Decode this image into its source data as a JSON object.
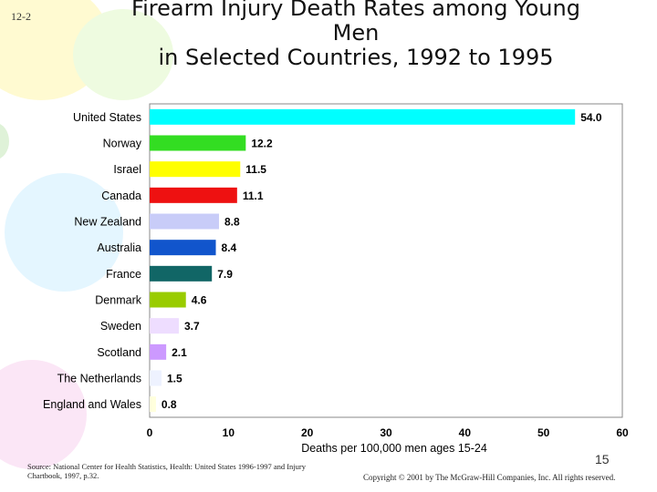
{
  "slide_number": "12-2",
  "title_lines": [
    "Firearm Injury Death Rates among Young",
    "Men",
    "in Selected Countries, 1992 to 1995"
  ],
  "source_text": "Source: National Center for Health Statistics, Health: United States 1996-1997 and Injury Chartbook, 1997, p.32.",
  "page_number": "15",
  "copyright": "Copyright © 2001 by The McGraw-Hill Companies, Inc. All rights reserved.",
  "chart_data": {
    "type": "bar",
    "orientation": "horizontal",
    "categories": [
      "United States",
      "Norway",
      "Israel",
      "Canada",
      "New Zealand",
      "Australia",
      "France",
      "Denmark",
      "Sweden",
      "Scotland",
      "The Netherlands",
      "England and Wales"
    ],
    "values": [
      54.0,
      12.2,
      11.5,
      11.1,
      8.8,
      8.4,
      7.9,
      4.6,
      3.7,
      2.1,
      1.5,
      0.8
    ],
    "value_labels": [
      "54.0",
      "12.2",
      "11.5",
      "11.1",
      "8.8",
      "8.4",
      "7.9",
      "4.6",
      "3.7",
      "2.1",
      "1.5",
      "0.8"
    ],
    "bar_colors": [
      "#00FFFF",
      "#33DD22",
      "#FFFF00",
      "#EE1111",
      "#C8CCF8",
      "#1155CC",
      "#116666",
      "#99CC00",
      "#EEDDFF",
      "#CC99FF",
      "#EEF2FF",
      "#FFFFDD"
    ],
    "xlabel": "Deaths per 100,000 men ages 15-24",
    "xlim": [
      0,
      60
    ],
    "xticks": [
      "0",
      "10",
      "20",
      "30",
      "40",
      "50",
      "60"
    ],
    "grid": false
  }
}
